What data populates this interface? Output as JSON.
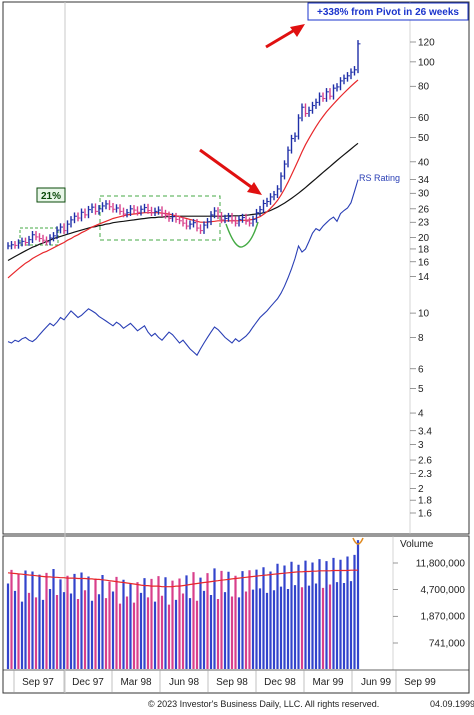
{
  "chart_data": [
    {
      "type": "line",
      "panel": "price",
      "y_scale": "log",
      "ylim": [
        1.4,
        140
      ],
      "y_ticks": [
        120,
        100,
        80,
        60,
        50,
        40,
        34,
        30,
        26,
        23,
        20,
        18,
        16,
        14,
        10,
        8,
        6,
        5,
        4,
        3.4,
        3,
        2.6,
        2.3,
        2,
        1.8,
        1.6
      ],
      "x_labels": [
        "Sep 97",
        "Dec 97",
        "Mar 98",
        "Jun 98",
        "Sep 98",
        "Dec 98",
        "Mar 99",
        "Jun 99",
        "Sep 99"
      ],
      "annotations": {
        "pivot_gain": "+338% from Pivot in 26 weeks",
        "prior_gain": "21%",
        "rs_label": "RS Rating"
      },
      "series": [
        {
          "key": "price",
          "color": "#1f2fa8",
          "values": [
            18.5,
            18.7,
            18.6,
            19.0,
            19.3,
            19.1,
            19.6,
            20.5,
            20.1,
            19.8,
            19.5,
            19.2,
            19.9,
            20.3,
            21.4,
            22.0,
            21.3,
            22.6,
            23.5,
            24.3,
            23.9,
            25.2,
            24.6,
            25.8,
            26.4,
            25.4,
            26.0,
            26.7,
            27.2,
            26.5,
            25.9,
            26.2,
            25.4,
            24.8,
            25.1,
            26.0,
            25.7,
            25.2,
            25.9,
            26.3,
            25.6,
            25.1,
            25.4,
            25.7,
            24.9,
            24.5,
            23.8,
            24.2,
            23.6,
            23.3,
            22.8,
            22.2,
            22.6,
            22.9,
            21.8,
            21.3,
            22.4,
            23.1,
            24.6,
            25.5,
            24.4,
            23.5,
            23.8,
            24.2,
            23.4,
            22.8,
            23.6,
            24.0,
            23.2,
            22.8,
            23.6,
            25.1,
            25.8,
            27.3,
            27.8,
            29.0,
            29.6,
            31.2,
            35.1,
            39.2,
            44.5,
            49.5,
            50.6,
            59.8,
            66.0,
            62.3,
            64.1,
            67.0,
            69.0,
            73.0,
            71.5,
            76.0,
            73.0,
            78.6,
            79.5,
            84.0,
            86.0,
            88.0,
            91.0,
            93.0,
            118.0
          ]
        },
        {
          "key": "ma_short",
          "color": "#e8272b",
          "values": [
            13.8,
            14.2,
            14.6,
            15.0,
            15.4,
            15.8,
            16.1,
            16.5,
            16.8,
            17.1,
            17.4,
            17.6,
            17.9,
            18.2,
            18.5,
            18.8,
            19.1,
            19.5,
            19.8,
            20.2,
            20.5,
            20.9,
            21.2,
            21.6,
            22.0,
            22.3,
            22.6,
            22.9,
            23.2,
            23.5,
            23.8,
            24.0,
            24.2,
            24.4,
            24.6,
            24.7,
            24.8,
            24.9,
            25.0,
            25.1,
            25.1,
            25.1,
            25.1,
            25.1,
            25.0,
            24.9,
            24.8,
            24.6,
            24.4,
            24.2,
            24.0,
            23.8,
            23.6,
            23.4,
            23.2,
            23.0,
            23.0,
            23.0,
            23.1,
            23.2,
            23.3,
            23.3,
            23.3,
            23.3,
            23.3,
            23.3,
            23.3,
            23.4,
            23.4,
            23.5,
            23.6,
            23.9,
            24.2,
            24.7,
            25.3,
            26.1,
            27.0,
            28.1,
            29.5,
            31.2,
            33.2,
            35.5,
            38.0,
            40.8,
            43.8,
            46.8,
            49.6,
            52.4,
            55.2,
            58.0,
            60.6,
            63.2,
            65.6,
            68.0,
            70.4,
            72.8,
            75.2,
            77.6,
            80.0,
            82.4,
            84.8
          ]
        },
        {
          "key": "ma_long",
          "color": "#111111",
          "values": [
            16.2,
            16.5,
            16.8,
            17.1,
            17.4,
            17.7,
            18.0,
            18.3,
            18.5,
            18.8,
            19.0,
            19.3,
            19.5,
            19.8,
            20.0,
            20.2,
            20.4,
            20.6,
            20.8,
            21.0,
            21.2,
            21.4,
            21.6,
            21.8,
            22.0,
            22.1,
            22.3,
            22.4,
            22.6,
            22.7,
            22.9,
            23.0,
            23.1,
            23.2,
            23.3,
            23.4,
            23.5,
            23.6,
            23.7,
            23.8,
            23.9,
            24.0,
            24.0,
            24.1,
            24.1,
            24.2,
            24.2,
            24.2,
            24.3,
            24.3,
            24.3,
            24.3,
            24.3,
            24.3,
            24.3,
            24.3,
            24.3,
            24.3,
            24.3,
            24.3,
            24.3,
            24.3,
            24.3,
            24.4,
            24.4,
            24.4,
            24.4,
            24.5,
            24.5,
            24.6,
            24.7,
            24.8,
            24.9,
            25.1,
            25.3,
            25.6,
            26.0,
            26.4,
            26.9,
            27.4,
            28.0,
            28.6,
            29.3,
            30.0,
            30.8,
            31.6,
            32.5,
            33.4,
            34.3,
            35.3,
            36.3,
            37.3,
            38.3,
            39.4,
            40.5,
            41.6,
            42.7,
            43.8,
            45.0,
            46.2,
            47.4
          ]
        },
        {
          "key": "rs_line",
          "color": "#2a3fb5",
          "values": [
            7.7,
            7.6,
            7.8,
            7.7,
            7.9,
            8.0,
            7.8,
            7.7,
            7.9,
            8.2,
            8.5,
            8.8,
            9.1,
            8.9,
            9.2,
            9.6,
            9.4,
            9.8,
            10.2,
            9.9,
            9.6,
            9.8,
            10.1,
            10.4,
            10.2,
            10.0,
            9.7,
            9.5,
            9.3,
            9.1,
            8.9,
            9.2,
            9.0,
            8.7,
            8.9,
            9.1,
            8.8,
            8.5,
            8.7,
            8.9,
            8.4,
            8.1,
            8.3,
            8.0,
            7.8,
            8.1,
            8.4,
            8.2,
            7.9,
            7.6,
            7.8,
            7.5,
            7.2,
            7.0,
            6.8,
            7.2,
            7.6,
            8.0,
            8.4,
            8.8,
            8.6,
            8.3,
            8.0,
            7.8,
            7.6,
            7.9,
            7.7,
            7.9,
            8.1,
            8.4,
            8.8,
            9.2,
            9.6,
            9.9,
            10.2,
            10.6,
            11.0,
            11.4,
            12.0,
            12.8,
            13.8,
            15.0,
            16.5,
            18.5,
            17.5,
            18.0,
            19.3,
            20.8,
            21.7,
            21.3,
            22.2,
            22.9,
            23.6,
            24.1,
            23.2,
            24.9,
            25.6,
            26.2,
            27.5,
            30.5,
            34.0
          ]
        }
      ]
    },
    {
      "type": "bar",
      "panel": "volume",
      "y_scale": "log",
      "title": "Volume",
      "ylim": [
        330000,
        28000000
      ],
      "y_ticks": [
        11800000,
        4700000,
        1870000,
        741000
      ],
      "avg_color": "#e8272b",
      "up_color": "#3344cc",
      "down_color": "#d8408c",
      "values": [
        5800000,
        9300000,
        4500000,
        8200000,
        3100000,
        9100000,
        4200000,
        8800000,
        3600000,
        7900000,
        3300000,
        8400000,
        4800000,
        9600000,
        3900000,
        6700000,
        4300000,
        7600000,
        4100000,
        8100000,
        3400000,
        8500000,
        4600000,
        7400000,
        3200000,
        6900000,
        4000000,
        7800000,
        3500000,
        6200000,
        4400000,
        7300000,
        2900000,
        6600000,
        3700000,
        5900000,
        3000000,
        6100000,
        4200000,
        7000000,
        3600000,
        6800000,
        3100000,
        7500000,
        3800000,
        7200000,
        2800000,
        6400000,
        3300000,
        6900000,
        4100000,
        7700000,
        3500000,
        8600000,
        3200000,
        7100000,
        4500000,
        8300000,
        3900000,
        9800000,
        3400000,
        9000000,
        4300000,
        8700000,
        3700000,
        7600000,
        3600000,
        8900000,
        4400000,
        9200000,
        4700000,
        9400000,
        4900000,
        10200000,
        4200000,
        8800000,
        4600000,
        11500000,
        5200000,
        10800000,
        4800000,
        12300000,
        5500000,
        11100000,
        5100000,
        12800000,
        5400000,
        12000000,
        5800000,
        13500000,
        5000000,
        12600000,
        5600000,
        14100000,
        6100000,
        13200000,
        5900000,
        14800000,
        6300000,
        15600000,
        26000000
      ],
      "up_flags": [
        1,
        0,
        1,
        0,
        1,
        1,
        0,
        1,
        0,
        1,
        1,
        0,
        1,
        1,
        0,
        1,
        1,
        0,
        1,
        1,
        0,
        1,
        0,
        1,
        1,
        0,
        1,
        1,
        0,
        0,
        1,
        0,
        0,
        1,
        0,
        1,
        0,
        0,
        1,
        1,
        0,
        0,
        1,
        0,
        0,
        1,
        0,
        0,
        1,
        0,
        0,
        1,
        1,
        0,
        0,
        1,
        1,
        0,
        1,
        1,
        0,
        0,
        1,
        1,
        0,
        0,
        1,
        1,
        0,
        0,
        1,
        1,
        1,
        1,
        1,
        1,
        1,
        1,
        1,
        1,
        1,
        1,
        1,
        1,
        0,
        1,
        1,
        1,
        1,
        1,
        0,
        1,
        0,
        1,
        1,
        1,
        1,
        1,
        1,
        1,
        1
      ],
      "avg_values": [
        8400000,
        8300000,
        8200000,
        8100000,
        8000000,
        7900000,
        7800000,
        7700000,
        7600000,
        7500000,
        7400000,
        7300000,
        7300000,
        7200000,
        7200000,
        7100000,
        7100000,
        7000000,
        7000000,
        7000000,
        6900000,
        6900000,
        6900000,
        6800000,
        6800000,
        6700000,
        6700000,
        6600000,
        6500000,
        6400000,
        6300000,
        6200000,
        6100000,
        6000000,
        5900000,
        5800000,
        5700000,
        5600000,
        5500000,
        5400000,
        5400000,
        5300000,
        5300000,
        5300000,
        5200000,
        5200000,
        5200000,
        5200000,
        5300000,
        5300000,
        5400000,
        5500000,
        5600000,
        5700000,
        5800000,
        5900000,
        6000000,
        6100000,
        6200000,
        6300000,
        6400000,
        6500000,
        6600000,
        6700000,
        6800000,
        6900000,
        7000000,
        7100000,
        7200000,
        7300000,
        7400000,
        7500000,
        7600000,
        7700000,
        7800000,
        7900000,
        8000000,
        8100000,
        8200000,
        8300000,
        8400000,
        8500000,
        8600000,
        8700000,
        8700000,
        8800000,
        8800000,
        8900000,
        8900000,
        9000000,
        9000000,
        9000000,
        9000000,
        9100000,
        9100000,
        9100000,
        9100000,
        9100000,
        9200000,
        9200000,
        9200000
      ]
    }
  ],
  "footer": {
    "copyright": "© 2023 Investor's Business Daily, LLC. All rights reserved.",
    "date": "04.09.1999"
  }
}
